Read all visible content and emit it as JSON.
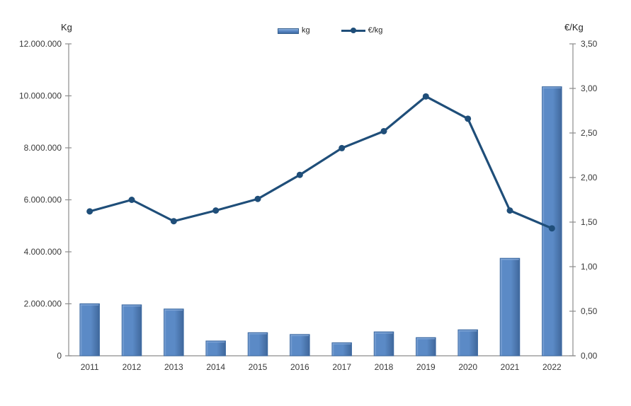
{
  "chart_data": {
    "type": "bar",
    "subtype": "combo-bar-line-dual-axis",
    "categories": [
      "2011",
      "2012",
      "2013",
      "2014",
      "2015",
      "2016",
      "2017",
      "2018",
      "2019",
      "2020",
      "2021",
      "2022"
    ],
    "series": [
      {
        "name": "kg",
        "type": "bar",
        "axis": "left",
        "values": [
          2000000,
          1960000,
          1800000,
          570000,
          890000,
          820000,
          500000,
          920000,
          700000,
          1000000,
          3750000,
          10350000
        ]
      },
      {
        "name": "€/kg",
        "type": "line",
        "axis": "right",
        "values": [
          1.62,
          1.75,
          1.51,
          1.63,
          1.76,
          2.03,
          2.33,
          2.52,
          2.91,
          2.66,
          1.63,
          1.43
        ]
      }
    ],
    "left_axis": {
      "title": "Kg",
      "min": 0,
      "max": 12000000,
      "step": 2000000,
      "tick_labels": [
        "0",
        "2.000.000",
        "4.000.000",
        "6.000.000",
        "8.000.000",
        "10.000.000",
        "12.000.000"
      ]
    },
    "right_axis": {
      "title": "€/Kg",
      "min": 0,
      "max": 3.5,
      "step": 0.5,
      "tick_labels": [
        "0,00",
        "0,50",
        "1,00",
        "1,50",
        "2,00",
        "2,50",
        "3,00",
        "3,50"
      ]
    },
    "legend": [
      {
        "label": "kg",
        "marker": "bar-swatch"
      },
      {
        "label": "€/kg",
        "marker": "line-swatch"
      }
    ],
    "legend_position": "top",
    "grid": false,
    "colors": {
      "bar_fill": "#5B8AC6",
      "bar_highlight": "#89ACDB",
      "bar_shadow": "#40689C",
      "bar_border": "#3A68A0",
      "line": "#1F4E79",
      "axis_line": "#8C8C8C",
      "tick_text": "#3A3A3A"
    }
  }
}
